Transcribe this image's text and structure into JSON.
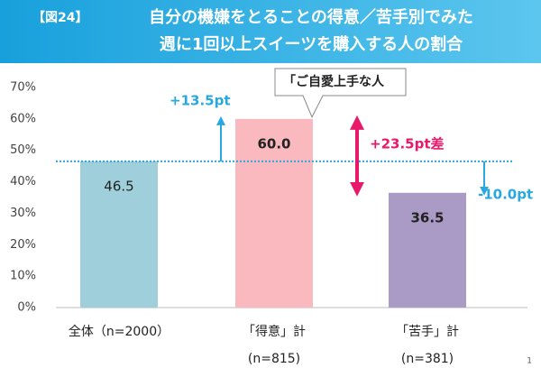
{
  "chart_data": {
    "type": "bar",
    "figure_label": "【図24】",
    "title_lines": [
      "自分の機嫌をとることの得意／苦手別でみた",
      "週に1回以上スイーツを購入する人の割合"
    ],
    "categories": [
      "全体（n=2000）",
      "「得意」計",
      "「苦手」計"
    ],
    "category_sublabels": [
      null,
      "(n=815)",
      "(n=381)"
    ],
    "values": [
      46.5,
      60.0,
      36.5
    ],
    "value_labels": [
      "46.5",
      "60.0",
      "36.5"
    ],
    "colors": [
      "#9fcfda",
      "#f9b9bf",
      "#a99bc6"
    ],
    "ylim": [
      0,
      70
    ],
    "yticks": [
      {
        "value": 0,
        "label": "0%"
      },
      {
        "value": 10,
        "label": "10%"
      },
      {
        "value": 20,
        "label": "20%"
      },
      {
        "value": 30,
        "label": "30%"
      },
      {
        "value": 40,
        "label": "40%"
      },
      {
        "value": 50,
        "label": "50%"
      },
      {
        "value": 60,
        "label": "60%"
      },
      {
        "value": 70,
        "label": "70%"
      }
    ],
    "annotations": {
      "gain": "+13.5pt",
      "gap": "+23.5pt差",
      "loss": "-10.0pt",
      "callout": "「ご自愛上手な人"
    },
    "page_number": "1"
  }
}
